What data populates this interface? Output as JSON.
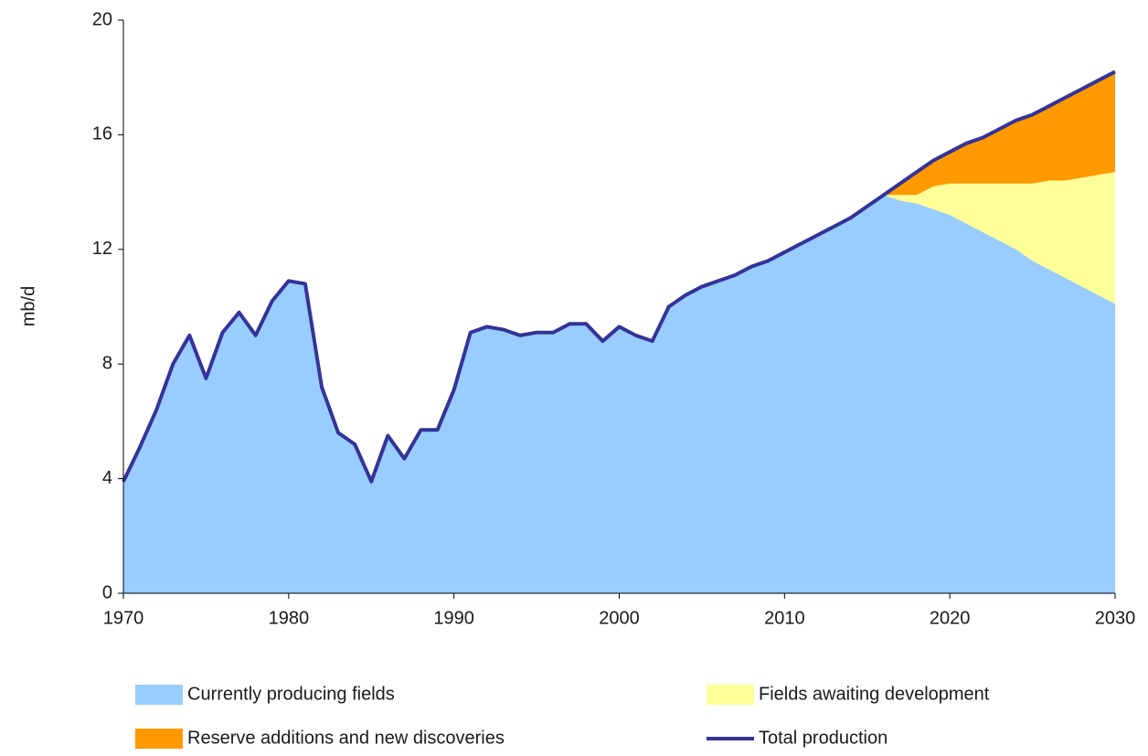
{
  "chart_data": {
    "type": "stacked-area-line",
    "ylabel": "mb/d",
    "xlim": [
      1970,
      2030
    ],
    "xticks": [
      1970,
      1980,
      1990,
      2000,
      2010,
      2020,
      2030
    ],
    "ylim": [
      0,
      20
    ],
    "yticks": [
      0,
      4,
      8,
      12,
      16,
      20
    ],
    "grid": false,
    "x": [
      1970,
      1971,
      1972,
      1973,
      1974,
      1975,
      1976,
      1977,
      1978,
      1979,
      1980,
      1981,
      1982,
      1983,
      1984,
      1985,
      1986,
      1987,
      1988,
      1989,
      1990,
      1991,
      1992,
      1993,
      1994,
      1995,
      1996,
      1997,
      1998,
      1999,
      2000,
      2001,
      2002,
      2003,
      2004,
      2005,
      2006,
      2007,
      2008,
      2009,
      2010,
      2011,
      2012,
      2013,
      2014,
      2015,
      2016,
      2017,
      2018,
      2019,
      2020,
      2021,
      2022,
      2023,
      2024,
      2025,
      2026,
      2027,
      2028,
      2029,
      2030
    ],
    "series": [
      {
        "name": "Currently producing fields",
        "kind": "area",
        "color": "#99ccff",
        "values": [
          3.9,
          5.1,
          6.4,
          8.0,
          9.0,
          7.5,
          9.1,
          9.8,
          9.0,
          10.2,
          10.9,
          10.8,
          7.2,
          5.6,
          5.2,
          3.9,
          5.5,
          4.7,
          5.7,
          5.7,
          7.1,
          9.1,
          9.3,
          9.2,
          9.0,
          9.1,
          9.1,
          9.4,
          9.4,
          8.8,
          9.3,
          9.0,
          8.8,
          10.0,
          10.4,
          10.7,
          10.9,
          11.1,
          11.4,
          11.6,
          11.9,
          12.2,
          12.5,
          12.8,
          13.1,
          13.5,
          13.9,
          13.7,
          13.6,
          13.4,
          13.2,
          12.9,
          12.6,
          12.3,
          12.0,
          11.6,
          11.3,
          11.0,
          10.7,
          10.4,
          10.1
        ]
      },
      {
        "name": "Fields awaiting development",
        "kind": "area",
        "color": "#ffff99",
        "values": [
          0,
          0,
          0,
          0,
          0,
          0,
          0,
          0,
          0,
          0,
          0,
          0,
          0,
          0,
          0,
          0,
          0,
          0,
          0,
          0,
          0,
          0,
          0,
          0,
          0,
          0,
          0,
          0,
          0,
          0,
          0,
          0,
          0,
          0,
          0,
          0,
          0,
          0,
          0,
          0,
          0,
          0,
          0,
          0,
          0,
          0,
          0,
          0.2,
          0.3,
          0.8,
          1.1,
          1.4,
          1.7,
          2.0,
          2.3,
          2.7,
          3.1,
          3.4,
          3.8,
          4.2,
          4.6
        ]
      },
      {
        "name": "Reserve additions and new discoveries",
        "kind": "area",
        "color": "#ff9900",
        "values": [
          0,
          0,
          0,
          0,
          0,
          0,
          0,
          0,
          0,
          0,
          0,
          0,
          0,
          0,
          0,
          0,
          0,
          0,
          0,
          0,
          0,
          0,
          0,
          0,
          0,
          0,
          0,
          0,
          0,
          0,
          0,
          0,
          0,
          0,
          0,
          0,
          0,
          0,
          0,
          0,
          0,
          0,
          0,
          0,
          0,
          0,
          0,
          0.4,
          0.8,
          0.9,
          1.1,
          1.4,
          1.6,
          1.9,
          2.2,
          2.4,
          2.6,
          2.9,
          3.1,
          3.3,
          3.5
        ]
      },
      {
        "name": "Total production",
        "kind": "line",
        "color": "#333399",
        "values": [
          3.9,
          5.1,
          6.4,
          8.0,
          9.0,
          7.5,
          9.1,
          9.8,
          9.0,
          10.2,
          10.9,
          10.8,
          7.2,
          5.6,
          5.2,
          3.9,
          5.5,
          4.7,
          5.7,
          5.7,
          7.1,
          9.1,
          9.3,
          9.2,
          9.0,
          9.1,
          9.1,
          9.4,
          9.4,
          8.8,
          9.3,
          9.0,
          8.8,
          10.0,
          10.4,
          10.7,
          10.9,
          11.1,
          11.4,
          11.6,
          11.9,
          12.2,
          12.5,
          12.8,
          13.1,
          13.5,
          13.9,
          14.3,
          14.7,
          15.1,
          15.4,
          15.7,
          15.9,
          16.2,
          16.5,
          16.7,
          17.0,
          17.3,
          17.6,
          17.9,
          18.2
        ]
      }
    ]
  }
}
